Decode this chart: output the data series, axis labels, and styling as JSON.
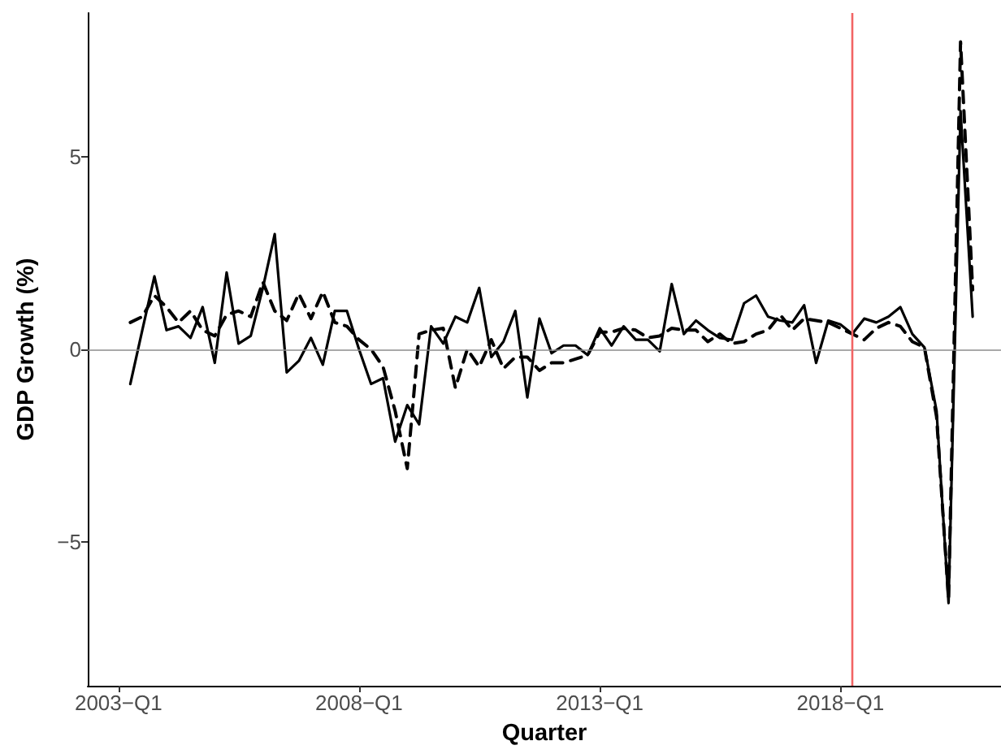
{
  "chart_data": {
    "type": "line",
    "xlabel": "Quarter",
    "ylabel": "GDP Growth (%)",
    "x": [
      "2003-04",
      "2003-07",
      "2003-10",
      "2004-01",
      "2004-04",
      "2004-07",
      "2004-10",
      "2005-01",
      "2005-04",
      "2005-07",
      "2005-10",
      "2006-01",
      "2006-04",
      "2006-07",
      "2006-10",
      "2007-01",
      "2007-04",
      "2007-07",
      "2007-10",
      "2008-01",
      "2008-04",
      "2008-07",
      "2008-10",
      "2009-01",
      "2009-04",
      "2009-07",
      "2009-10",
      "2010-01",
      "2010-04",
      "2010-07",
      "2010-10",
      "2011-01",
      "2011-04",
      "2011-07",
      "2011-10",
      "2012-01",
      "2012-04",
      "2012-07",
      "2012-10",
      "2013-01",
      "2013-04",
      "2013-07",
      "2013-10",
      "2014-01",
      "2014-04",
      "2014-07",
      "2014-10",
      "2015-01",
      "2015-04",
      "2015-07",
      "2015-10",
      "2016-01",
      "2016-04",
      "2016-07",
      "2016-10",
      "2017-01",
      "2017-04",
      "2017-07",
      "2017-10",
      "2018-01",
      "2018-04",
      "2018-07",
      "2018-10",
      "2019-01",
      "2019-04",
      "2019-07",
      "2019-10",
      "2020-01",
      "2020-04",
      "2020-07",
      "2020-10"
    ],
    "series": [
      {
        "color": "#000000",
        "line_style": "solid",
        "values": [
          -0.9,
          0.5,
          1.9,
          0.5,
          0.6,
          0.3,
          1.1,
          -0.35,
          2.0,
          0.15,
          0.35,
          1.6,
          3.0,
          -0.6,
          -0.3,
          0.3,
          -0.4,
          1.0,
          1.0,
          0.0,
          -0.9,
          -0.75,
          -2.4,
          -1.45,
          -1.95,
          0.6,
          0.15,
          0.85,
          0.7,
          1.6,
          -0.2,
          0.2,
          1.0,
          -1.25,
          0.8,
          -0.1,
          0.1,
          0.1,
          -0.15,
          0.55,
          0.1,
          0.6,
          0.25,
          0.25,
          -0.05,
          1.7,
          0.4,
          0.75,
          0.5,
          0.3,
          0.25,
          1.2,
          1.4,
          0.85,
          0.75,
          0.7,
          1.15,
          -0.35,
          0.75,
          0.65,
          0.4,
          0.8,
          0.7,
          0.85,
          1.1,
          0.4,
          0.05,
          -1.6,
          -6.6,
          6.2,
          0.85
        ]
      },
      {
        "color": "#000000",
        "line_style": "dashed",
        "values": [
          0.7,
          0.85,
          1.4,
          1.1,
          0.7,
          1.0,
          0.5,
          0.35,
          0.9,
          1.0,
          0.85,
          1.75,
          1.0,
          0.75,
          1.45,
          0.8,
          1.5,
          0.7,
          0.6,
          0.25,
          0.0,
          -0.45,
          -1.6,
          -3.1,
          0.4,
          0.5,
          0.55,
          -1.0,
          0.0,
          -0.45,
          0.25,
          -0.5,
          -0.2,
          -0.2,
          -0.55,
          -0.35,
          -0.35,
          -0.25,
          -0.15,
          0.45,
          0.45,
          0.55,
          0.5,
          0.3,
          0.35,
          0.55,
          0.5,
          0.5,
          0.2,
          0.4,
          0.15,
          0.2,
          0.4,
          0.5,
          0.9,
          0.5,
          0.8,
          0.75,
          0.7,
          0.55,
          0.4,
          0.25,
          0.55,
          0.7,
          0.6,
          0.2,
          0.05,
          -1.75,
          -6.5,
          8.0,
          1.55
        ]
      }
    ],
    "xlim": [
      "2002-05-13",
      "2021-05-04"
    ],
    "xticks": [
      {
        "value": "2003-01",
        "label": "2003−Q1"
      },
      {
        "value": "2008-01",
        "label": "2008−Q1"
      },
      {
        "value": "2013-01",
        "label": "2013−Q1"
      },
      {
        "value": "2018-01",
        "label": "2018−Q1"
      }
    ],
    "ylim": [
      -8.75,
      8.75
    ],
    "yticks": [
      {
        "value": -5,
        "label": "−5"
      },
      0,
      5
    ],
    "ref_lines": [
      {
        "axis": "y",
        "value": 0,
        "color": "#8c8c8c"
      },
      {
        "axis": "x",
        "value": "2018-04",
        "color": "#f26464"
      }
    ]
  }
}
